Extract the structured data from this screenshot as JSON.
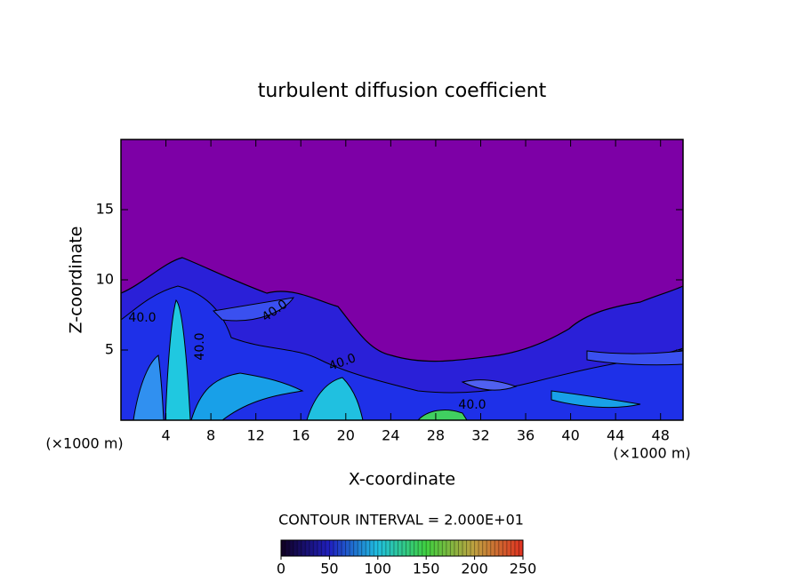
{
  "chart_data": {
    "type": "contour",
    "title": "turbulent diffusion coefficient",
    "x_label": "X-coordinate",
    "y_label": "Z-coordinate",
    "x_unit": "(×1000 m)",
    "y_unit": "(×1000 m)",
    "xlim": [
      0,
      50
    ],
    "ylim": [
      0,
      20
    ],
    "xticks": [
      4,
      8,
      12,
      16,
      20,
      24,
      28,
      32,
      36,
      40,
      44,
      48
    ],
    "yticks": [
      5,
      10,
      15
    ],
    "contour_labels": [
      "40.0",
      "40.0",
      "40.0",
      "40.0",
      "40.0"
    ],
    "colorbar": {
      "title": "CONTOUR INTERVAL = 2.000E+01",
      "lim": [
        0,
        250
      ],
      "ticks": [
        0,
        50,
        100,
        150,
        200,
        250
      ],
      "colors": [
        "#100020",
        "#2020c0",
        "#20c0e0",
        "#40d040",
        "#c0a040",
        "#e03020"
      ]
    }
  }
}
